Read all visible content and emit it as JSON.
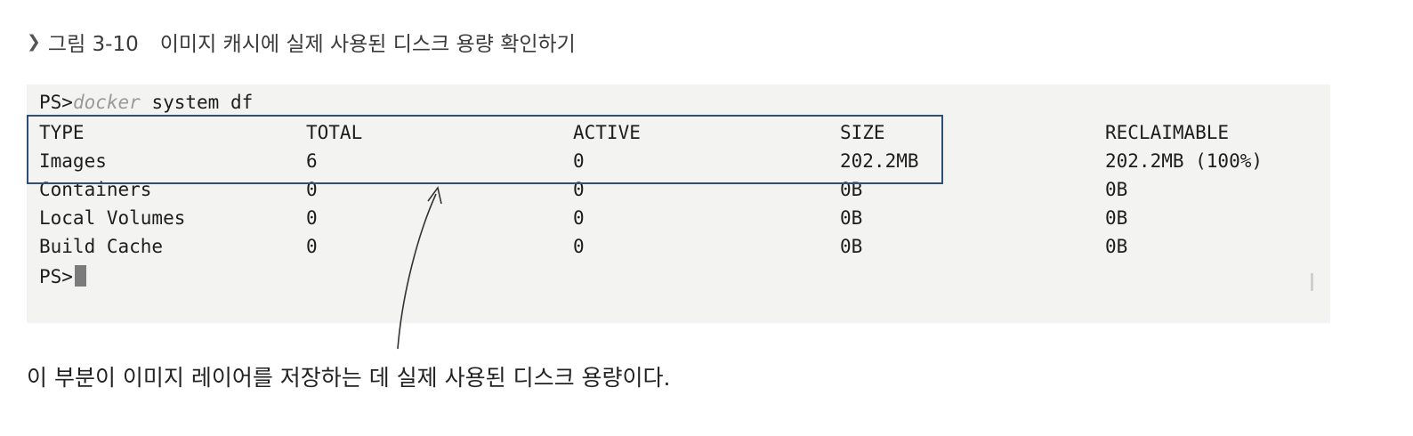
{
  "caption": {
    "figure": "그림 3-10",
    "text": "이미지 캐시에 실제 사용된 디스크 용량 확인하기"
  },
  "terminal": {
    "prompt": "PS>",
    "command_word": "docker",
    "command_rest": " system df",
    "headers": [
      "TYPE",
      "TOTAL",
      "ACTIVE",
      "SIZE",
      "RECLAIMABLE"
    ],
    "rows": [
      [
        "Images",
        "6",
        "0",
        "202.2MB",
        "202.2MB (100%)"
      ],
      [
        "Containers",
        "0",
        "0",
        "0B",
        "0B"
      ],
      [
        "Local Volumes",
        "0",
        "0",
        "0B",
        "0B"
      ],
      [
        "Build Cache",
        "0",
        "0",
        "0B",
        "0B"
      ]
    ],
    "final_prompt": "PS>"
  },
  "annotation": "이 부분이 이미지 레이어를 저장하는 데 실제 사용된 디스크 용량이다.",
  "colors": {
    "highlight_border": "#2e4f77",
    "terminal_bg": "#f3f3f1"
  }
}
